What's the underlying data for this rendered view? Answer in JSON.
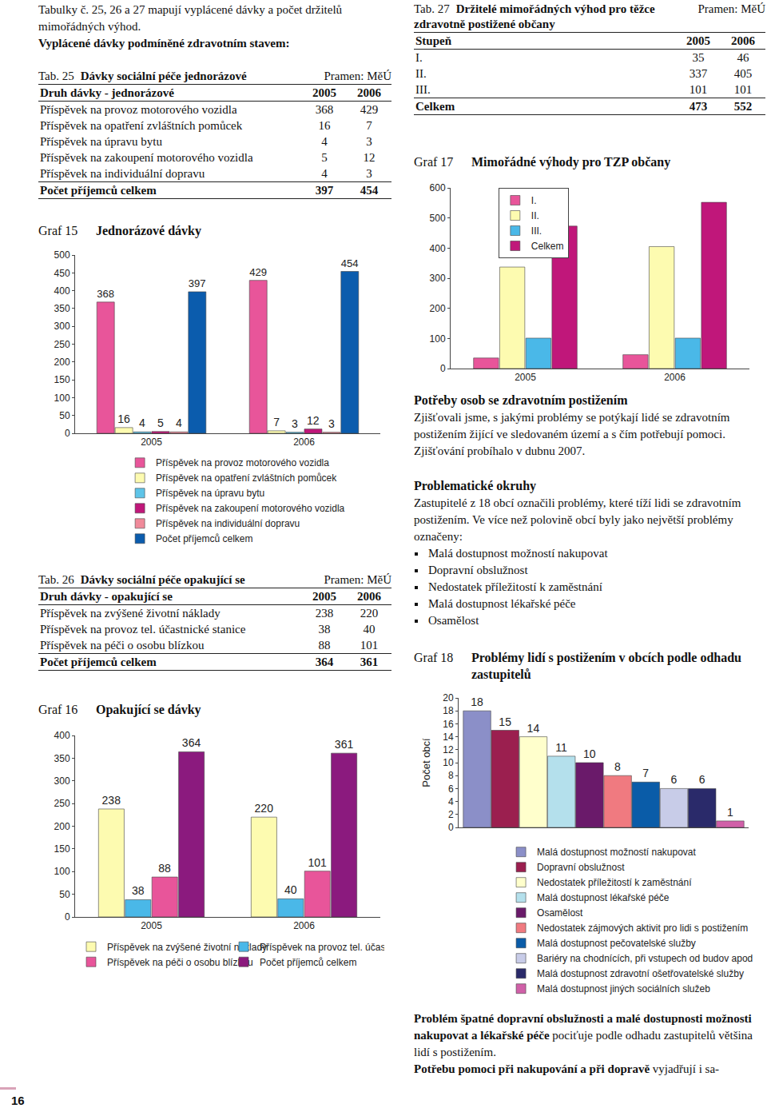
{
  "document": {
    "intro": {
      "text": "Tabulky č. 25, 26 a 27 mapují vyplácené dávky a počet držitelů mimořádných výhod.",
      "bold": "Vyplácené dávky podmíněné zdravotním stavem:"
    },
    "tables": [
      {
        "label": "Tab. 25",
        "title": "Dávky sociální péče jednorázové",
        "source": "Pramen: MěÚ",
        "header": [
          "Druh dávky - jednorázové",
          "2005",
          "2006"
        ],
        "rows": [
          [
            "Příspěvek na provoz motorového vozidla",
            368,
            429
          ],
          [
            "Příspěvek na opatření zvláštních pomůcek",
            16,
            7
          ],
          [
            "Příspěvek na úpravu bytu",
            4,
            3
          ],
          [
            "Příspěvek na zakoupení motorového vozidla",
            5,
            12
          ],
          [
            "Příspěvek na individuální dopravu",
            4,
            3
          ]
        ],
        "total": [
          "Počet příjemců celkem",
          397,
          454
        ]
      },
      {
        "label": "Tab. 26",
        "title": "Dávky sociální péče opakující se",
        "source": "Pramen: MěÚ",
        "header": [
          "Druh dávky - opakující se",
          "2005",
          "2006"
        ],
        "rows": [
          [
            "Příspěvek na zvýšené životní náklady",
            238,
            220
          ],
          [
            "Příspěvek na provoz tel. účastnické stanice",
            38,
            40
          ],
          [
            "Příspěvek na péči o osobu blízkou",
            88,
            101
          ]
        ],
        "total": [
          "Počet příjemců celkem",
          364,
          361
        ]
      },
      {
        "label": "Tab. 27",
        "title": "Držitelé mimořádných výhod pro těžce zdravotně postižené občany",
        "source": "Pramen: MěÚ",
        "header": [
          "Stupeň",
          "2005",
          "2006"
        ],
        "rows": [
          [
            "I.",
            35,
            46
          ],
          [
            "II.",
            337,
            405
          ],
          [
            "III.",
            101,
            101
          ]
        ],
        "total": [
          "Celkem",
          473,
          552
        ]
      }
    ],
    "section": {
      "heading": "Potřeby osob se zdravotním postižením",
      "text": "Zjišťovali jsme, s jakými problémy se potýkají lidé se zdravotním postižením žijící ve sledovaném území a s čím potřebují pomoci. Zjišťování probíhalo v dubnu 2007.",
      "subheading": "Problematické okruhy",
      "subtext": "Zastupitelé z 18 obcí označili problémy, které tíží lidi se zdravotním postižením. Ve více než polovině obcí byly jako největší problémy označeny:",
      "bullets": [
        "Malá dostupnost možností nakupovat",
        "Dopravní obslužnost",
        "Nedostatek příležitostí k zaměstnání",
        "Malá dostupnost lékařské péče",
        "Osamělost"
      ]
    },
    "closing": [
      {
        "bold": "Problém špatné dopravní obslužnosti a malé dostupnosti možnosti nakupovat a lékařské péče",
        "text": " pociťuje podle odhadu zastupitelů většina lidí s postižením."
      },
      {
        "bold": "Potřebu pomoci při nakupování a při dopravě",
        "text": " vyjadřují i sa-"
      }
    ],
    "page_number": "16"
  },
  "chart_data": [
    {
      "type": "bar",
      "label": "Graf 15",
      "title": "Jednorázové dávky",
      "categories": [
        "2005",
        "2006"
      ],
      "series": [
        {
          "name": "Příspěvek na provoz motorového vozidla",
          "color": "#e8559a",
          "values": [
            368,
            429
          ]
        },
        {
          "name": "Příspěvek na opatření zvláštních pomůcek",
          "color": "#fdfbb0",
          "values": [
            16,
            7
          ]
        },
        {
          "name": "Příspěvek na úpravu bytu",
          "color": "#5ec4e8",
          "values": [
            4,
            3
          ]
        },
        {
          "name": "Příspěvek na zakoupení motorového vozidla",
          "color": "#c0177a",
          "values": [
            5,
            12
          ]
        },
        {
          "name": "Příspěvek na individuální dopravu",
          "color": "#f08a9a",
          "values": [
            4,
            3
          ]
        },
        {
          "name": "Počet příjemců celkem",
          "color": "#0b5cad",
          "values": [
            397,
            454
          ]
        }
      ],
      "ylim": [
        0,
        500
      ],
      "yticks": [
        0,
        50,
        100,
        150,
        200,
        250,
        300,
        350,
        400,
        450,
        500
      ],
      "grid": false,
      "legend": "bottom",
      "data_labels": true
    },
    {
      "type": "bar",
      "label": "Graf 16",
      "title": "Opakující se dávky",
      "categories": [
        "2005",
        "2006"
      ],
      "series": [
        {
          "name": "Příspěvek na zvýšené životní náklady",
          "color": "#fdfbb0",
          "values": [
            238,
            220
          ]
        },
        {
          "name": "Příspěvek na provoz tel. účastnické stanice",
          "color": "#4ab8e8",
          "values": [
            38,
            40
          ]
        },
        {
          "name": "Příspěvek na péči o osobu blízkou",
          "color": "#e8559a",
          "values": [
            88,
            101
          ]
        },
        {
          "name": "Počet příjemců celkem",
          "color": "#8b1a7e",
          "values": [
            364,
            361
          ]
        }
      ],
      "ylim": [
        0,
        400
      ],
      "yticks": [
        0,
        50,
        100,
        150,
        200,
        250,
        300,
        350,
        400
      ],
      "grid": false,
      "legend": "bottom",
      "data_labels": true
    },
    {
      "type": "bar",
      "label": "Graf 17",
      "title": "Mimořádné výhody pro TZP občany",
      "categories": [
        "2005",
        "2006"
      ],
      "series": [
        {
          "name": "I.",
          "color": "#e8559a",
          "values": [
            35,
            46
          ]
        },
        {
          "name": "II.",
          "color": "#fdfbb0",
          "values": [
            337,
            405
          ]
        },
        {
          "name": "III.",
          "color": "#4ab8e8",
          "values": [
            101,
            101
          ]
        },
        {
          "name": "Celkem",
          "color": "#c0177a",
          "values": [
            473,
            552
          ]
        }
      ],
      "ylim": [
        0,
        600
      ],
      "yticks": [
        0,
        100,
        200,
        300,
        400,
        500,
        600
      ],
      "grid": false,
      "legend": "top left",
      "data_labels": false
    },
    {
      "type": "bar",
      "label": "Graf 18",
      "title": "Problémy lidí s postižením v obcích podle odhadu zastupitelů",
      "y_label": "Počet obcí",
      "categories": [
        null
      ],
      "series": [
        {
          "name": "Malá dostupnost možností nakupovat",
          "color": "#8b8fc8",
          "values": [
            18
          ]
        },
        {
          "name": "Dopravní obslužnost",
          "color": "#9b1f4f",
          "values": [
            15
          ]
        },
        {
          "name": "Nedostatek příležitostí k zaměstnání",
          "color": "#ffffcc",
          "values": [
            14
          ]
        },
        {
          "name": "Malá dostupnost lékařské péče",
          "color": "#b4e0ec",
          "values": [
            11
          ]
        },
        {
          "name": "Osamělost",
          "color": "#6a1a6a",
          "values": [
            10
          ]
        },
        {
          "name": "Nedostatek zájmových aktivit pro lidi s postižením",
          "color": "#f07a80",
          "values": [
            8
          ]
        },
        {
          "name": "Malá dostupnost pečovatelské služby",
          "color": "#0a5ca8",
          "values": [
            7
          ]
        },
        {
          "name": "Bariéry na chodnících, při vstupech od budov apod",
          "color": "#c8cce8",
          "values": [
            6
          ]
        },
        {
          "name": "Malá dostupnost zdravotní ošetřovatelské služby",
          "color": "#2a2a6a",
          "values": [
            6
          ]
        },
        {
          "name": "Malá dostupnost jiných sociálních služeb",
          "color": "#d060a8",
          "values": [
            1
          ]
        }
      ],
      "ylim": [
        0,
        20
      ],
      "yticks": [
        0,
        2,
        4,
        6,
        8,
        10,
        12,
        14,
        16,
        18,
        20
      ],
      "grid": false,
      "legend": "bottom",
      "data_labels": true,
      "tick_labels": "y"
    }
  ]
}
